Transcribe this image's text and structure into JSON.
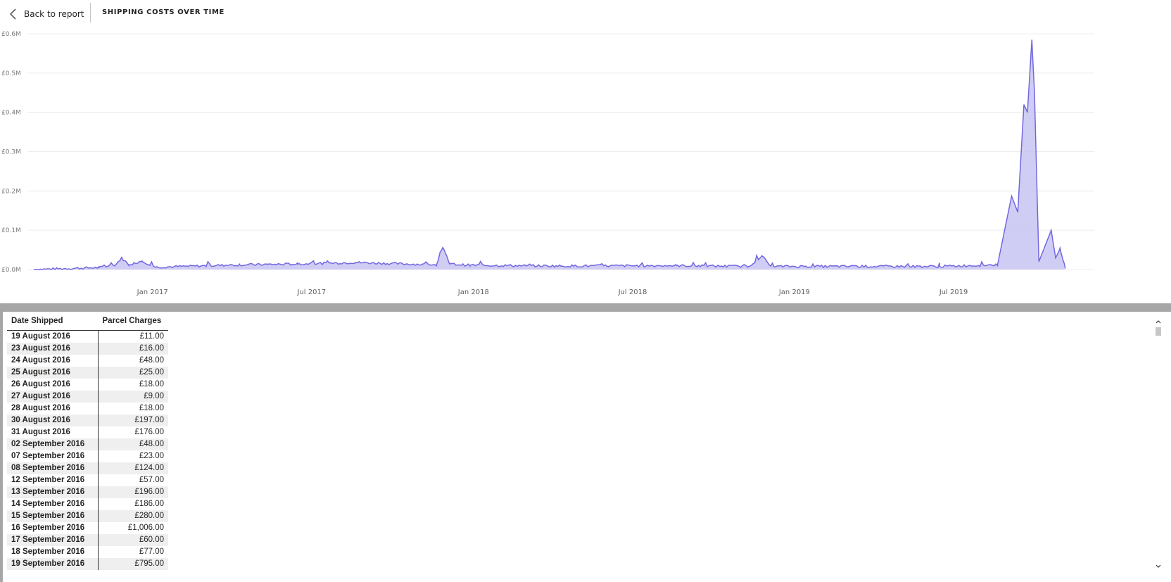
{
  "header": {
    "back_label": "Back to report",
    "title": "SHIPPING COSTS OVER TIME",
    "back_icon": "chevron-left-icon"
  },
  "colors": {
    "line": "#7367e0",
    "fill": "#c8c4f2",
    "band": "#a6a6a6"
  },
  "chart_data": {
    "type": "area",
    "title": "",
    "xlabel": "",
    "ylabel": "",
    "y_ticks": [
      "£0.0M",
      "£0.1M",
      "£0.2M",
      "£0.3M",
      "£0.4M",
      "£0.5M",
      "£0.6M"
    ],
    "ylim": [
      0,
      0.6
    ],
    "x_range": [
      "2016-08-19",
      "2019-11-30"
    ],
    "x_ticks": [
      {
        "label": "Jan 2017",
        "date": "2017-01-01"
      },
      {
        "label": "Jul 2017",
        "date": "2017-07-01"
      },
      {
        "label": "Jan 2018",
        "date": "2018-01-01"
      },
      {
        "label": "Jul 2018",
        "date": "2018-07-01"
      },
      {
        "label": "Jan 2019",
        "date": "2019-01-01"
      },
      {
        "label": "Jul 2019",
        "date": "2019-07-01"
      }
    ],
    "gridlines": true,
    "series": [
      {
        "baseline": 0.004,
        "points": [
          {
            "date": "2016-08-19",
            "value": 0.0
          },
          {
            "date": "2016-11-01",
            "value": 0.005
          },
          {
            "date": "2016-11-20",
            "value": 0.012
          },
          {
            "date": "2016-11-27",
            "value": 0.03
          },
          {
            "date": "2016-12-05",
            "value": 0.012
          },
          {
            "date": "2016-12-20",
            "value": 0.022
          },
          {
            "date": "2017-01-05",
            "value": 0.006
          },
          {
            "date": "2017-04-10",
            "value": 0.012
          },
          {
            "date": "2017-06-15",
            "value": 0.014
          },
          {
            "date": "2017-08-20",
            "value": 0.018
          },
          {
            "date": "2017-11-20",
            "value": 0.012
          },
          {
            "date": "2017-11-27",
            "value": 0.056
          },
          {
            "date": "2017-12-05",
            "value": 0.014
          },
          {
            "date": "2017-12-28",
            "value": 0.011
          },
          {
            "date": "2018-04-10",
            "value": 0.009
          },
          {
            "date": "2018-08-20",
            "value": 0.01
          },
          {
            "date": "2018-11-10",
            "value": 0.008
          },
          {
            "date": "2018-11-25",
            "value": 0.035
          },
          {
            "date": "2018-12-05",
            "value": 0.008
          },
          {
            "date": "2019-06-15",
            "value": 0.008
          },
          {
            "date": "2019-08-20",
            "value": 0.012
          },
          {
            "date": "2019-09-05",
            "value": 0.187
          },
          {
            "date": "2019-09-12",
            "value": 0.146
          },
          {
            "date": "2019-09-19",
            "value": 0.42
          },
          {
            "date": "2019-09-23",
            "value": 0.4
          },
          {
            "date": "2019-09-28",
            "value": 0.585
          },
          {
            "date": "2019-10-01",
            "value": 0.45
          },
          {
            "date": "2019-10-06",
            "value": 0.02
          },
          {
            "date": "2019-10-20",
            "value": 0.1
          },
          {
            "date": "2019-10-25",
            "value": 0.03
          },
          {
            "date": "2019-10-30",
            "value": 0.055
          },
          {
            "date": "2019-11-05",
            "value": 0.003
          }
        ]
      }
    ]
  },
  "table": {
    "headers": [
      "Date Shipped",
      "Parcel Charges"
    ],
    "rows": [
      [
        "19 August 2016",
        "£11.00"
      ],
      [
        "23 August 2016",
        "£16.00"
      ],
      [
        "24 August 2016",
        "£48.00"
      ],
      [
        "25 August 2016",
        "£25.00"
      ],
      [
        "26 August 2016",
        "£18.00"
      ],
      [
        "27 August 2016",
        "£9.00"
      ],
      [
        "28 August 2016",
        "£18.00"
      ],
      [
        "30 August 2016",
        "£197.00"
      ],
      [
        "31 August 2016",
        "£176.00"
      ],
      [
        "02 September 2016",
        "£48.00"
      ],
      [
        "07 September 2016",
        "£23.00"
      ],
      [
        "08 September 2016",
        "£124.00"
      ],
      [
        "12 September 2016",
        "£57.00"
      ],
      [
        "13 September 2016",
        "£196.00"
      ],
      [
        "14 September 2016",
        "£186.00"
      ],
      [
        "15 September 2016",
        "£280.00"
      ],
      [
        "16 September 2016",
        "£1,006.00"
      ],
      [
        "17 September 2016",
        "£60.00"
      ],
      [
        "18 September 2016",
        "£77.00"
      ],
      [
        "19 September 2016",
        "£795.00"
      ]
    ]
  },
  "scrollbar": {
    "up_icon": "chevron-up-icon",
    "down_icon": "chevron-down-icon"
  }
}
